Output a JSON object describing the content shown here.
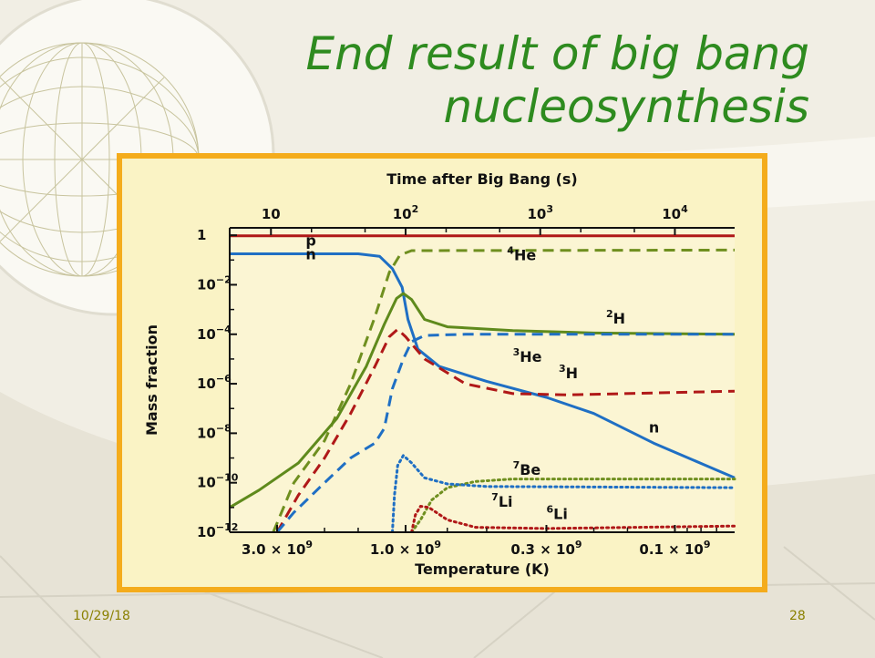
{
  "slide": {
    "title": "End result of big bang\nnucleosynthesis",
    "date": "10/29/18",
    "page_number": "28",
    "title_color": "#2e8b1f"
  },
  "chart_data": {
    "type": "line",
    "title": "",
    "top_axis": {
      "label": "Time after Big Bang (s)",
      "scale": "log",
      "ticks": [
        {
          "value": 10,
          "base": "10",
          "exp": ""
        },
        {
          "value": 100,
          "base": "10",
          "exp": "2"
        },
        {
          "value": 1000,
          "base": "10",
          "exp": "3"
        },
        {
          "value": 10000,
          "base": "10",
          "exp": "4"
        }
      ]
    },
    "x_axis": {
      "label": "Temperature (K)",
      "unit": "K",
      "scale": "log",
      "reversed": true,
      "range": [
        4500000000.0,
        60000000.0
      ],
      "ticks": [
        {
          "value": 3000000000.0,
          "text": "3.0 × 10",
          "exp": "9"
        },
        {
          "value": 1000000000.0,
          "text": "1.0 × 10",
          "exp": "9"
        },
        {
          "value": 300000000.0,
          "text": "0.3 × 10",
          "exp": "9"
        },
        {
          "value": 100000000.0,
          "text": "0.1 × 10",
          "exp": "9"
        }
      ]
    },
    "y_axis": {
      "label": "Mass fraction",
      "scale": "log",
      "range_log10": [
        -12,
        0.3
      ],
      "ticks": [
        {
          "log": 0,
          "base": "1",
          "exp": ""
        },
        {
          "log": -2,
          "base": "10",
          "exp": "−2"
        },
        {
          "log": -4,
          "base": "10",
          "exp": "−4"
        },
        {
          "log": -6,
          "base": "10",
          "exp": "−6"
        },
        {
          "log": -8,
          "base": "10",
          "exp": "−8"
        },
        {
          "log": -10,
          "base": "10",
          "exp": "−10"
        },
        {
          "log": -12,
          "base": "10",
          "exp": "−12"
        }
      ]
    },
    "series": [
      {
        "name": "p",
        "color": "#b01818",
        "style": "solid",
        "points": [
          [
            4500000000.0,
            -0.02
          ],
          [
            60000000.0,
            -0.02
          ]
        ]
      },
      {
        "name": "n",
        "color": "#1f6fc4",
        "style": "solid",
        "points": [
          [
            4500000000.0,
            -0.75
          ],
          [
            1500000000.0,
            -0.75
          ],
          [
            1250000000.0,
            -0.85
          ],
          [
            1120000000.0,
            -1.35
          ],
          [
            1030000000.0,
            -2.1
          ],
          [
            980000000.0,
            -3.4
          ],
          [
            900000000.0,
            -4.6
          ],
          [
            750000000.0,
            -5.3
          ],
          [
            500000000.0,
            -5.9
          ],
          [
            300000000.0,
            -6.55
          ],
          [
            200000000.0,
            -7.2
          ],
          [
            120000000.0,
            -8.4
          ],
          [
            60000000.0,
            -9.8
          ]
        ]
      },
      {
        "name": "4He",
        "color": "#6f8f1f",
        "style": "dashed",
        "points": [
          [
            3100000000.0,
            -12.0
          ],
          [
            2600000000.0,
            -10.0
          ],
          [
            2000000000.0,
            -8.3
          ],
          [
            1600000000.0,
            -6.0
          ],
          [
            1300000000.0,
            -3.3
          ],
          [
            1150000000.0,
            -1.5
          ],
          [
            1050000000.0,
            -0.8
          ],
          [
            950000000.0,
            -0.62
          ],
          [
            60000000.0,
            -0.6
          ]
        ]
      },
      {
        "name": "2H",
        "color": "#5f8a1c",
        "style": "solid",
        "points": [
          [
            4500000000.0,
            -11.0
          ],
          [
            3500000000.0,
            -10.3
          ],
          [
            2500000000.0,
            -9.2
          ],
          [
            1800000000.0,
            -7.4
          ],
          [
            1400000000.0,
            -5.3
          ],
          [
            1200000000.0,
            -3.6
          ],
          [
            1080000000.0,
            -2.55
          ],
          [
            1020000000.0,
            -2.35
          ],
          [
            950000000.0,
            -2.6
          ],
          [
            850000000.0,
            -3.4
          ],
          [
            700000000.0,
            -3.7
          ],
          [
            400000000.0,
            -3.85
          ],
          [
            200000000.0,
            -3.95
          ],
          [
            60000000.0,
            -4.0
          ]
        ]
      },
      {
        "name": "3H",
        "color": "#b01818",
        "style": "dashed",
        "points": [
          [
            3000000000.0,
            -12.0
          ],
          [
            2500000000.0,
            -10.5
          ],
          [
            2000000000.0,
            -9.0
          ],
          [
            1600000000.0,
            -7.2
          ],
          [
            1300000000.0,
            -5.3
          ],
          [
            1150000000.0,
            -4.1
          ],
          [
            1070000000.0,
            -3.8
          ],
          [
            1000000000.0,
            -4.1
          ],
          [
            850000000.0,
            -5.0
          ],
          [
            600000000.0,
            -6.0
          ],
          [
            400000000.0,
            -6.4
          ],
          [
            250000000.0,
            -6.45
          ],
          [
            60000000.0,
            -6.3
          ]
        ]
      },
      {
        "name": "3He",
        "color": "#1f6fc4",
        "style": "dashed",
        "points": [
          [
            3000000000.0,
            -12.0
          ],
          [
            2600000000.0,
            -11.2
          ],
          [
            2000000000.0,
            -10.0
          ],
          [
            1600000000.0,
            -9.0
          ],
          [
            1300000000.0,
            -8.4
          ],
          [
            1200000000.0,
            -7.8
          ],
          [
            1120000000.0,
            -6.2
          ],
          [
            1020000000.0,
            -5.0
          ],
          [
            950000000.0,
            -4.3
          ],
          [
            850000000.0,
            -4.05
          ],
          [
            600000000.0,
            -4.0
          ],
          [
            60000000.0,
            -4.0
          ]
        ]
      },
      {
        "name": "7Be",
        "color": "#6f8f1f",
        "style": "dotted",
        "points": [
          [
            950000000.0,
            -12.0
          ],
          [
            880000000.0,
            -11.5
          ],
          [
            800000000.0,
            -10.7
          ],
          [
            700000000.0,
            -10.2
          ],
          [
            550000000.0,
            -9.95
          ],
          [
            400000000.0,
            -9.85
          ],
          [
            60000000.0,
            -9.85
          ]
        ]
      },
      {
        "name": "7Li",
        "color": "#1f6fc4",
        "style": "dotted",
        "points": [
          [
            1120000000.0,
            -12.0
          ],
          [
            1100000000.0,
            -10.5
          ],
          [
            1070000000.0,
            -9.3
          ],
          [
            1020000000.0,
            -8.9
          ],
          [
            950000000.0,
            -9.2
          ],
          [
            850000000.0,
            -9.8
          ],
          [
            700000000.0,
            -10.05
          ],
          [
            500000000.0,
            -10.15
          ],
          [
            60000000.0,
            -10.2
          ]
        ]
      },
      {
        "name": "6Li",
        "color": "#b01818",
        "style": "dotted",
        "points": [
          [
            950000000.0,
            -12.0
          ],
          [
            920000000.0,
            -11.3
          ],
          [
            880000000.0,
            -10.95
          ],
          [
            820000000.0,
            -11.0
          ],
          [
            700000000.0,
            -11.5
          ],
          [
            550000000.0,
            -11.8
          ],
          [
            300000000.0,
            -11.85
          ],
          [
            60000000.0,
            -11.75
          ]
        ]
      }
    ],
    "labels": [
      {
        "base": "p",
        "sup": "",
        "x": 2350000000.0,
        "y": -0.2
      },
      {
        "base": "n",
        "sup": "",
        "x": 2350000000.0,
        "y": -0.75
      },
      {
        "base": "He",
        "sup": "4",
        "x": 420000000.0,
        "y": -0.78
      },
      {
        "base": "H",
        "sup": "2",
        "x": 180000000.0,
        "y": -3.35
      },
      {
        "base": "He",
        "sup": "3",
        "x": 400000000.0,
        "y": -4.9
      },
      {
        "base": "H",
        "sup": "3",
        "x": 270000000.0,
        "y": -5.55
      },
      {
        "base": "n",
        "sup": "",
        "x": 125000000.0,
        "y": -7.75
      },
      {
        "base": "Be",
        "sup": "7",
        "x": 400000000.0,
        "y": -9.45
      },
      {
        "base": "Li",
        "sup": "7",
        "x": 480000000.0,
        "y": -10.75
      },
      {
        "base": "Li",
        "sup": "6",
        "x": 300000000.0,
        "y": -11.25
      }
    ],
    "grid": false,
    "legend": "none (curves labeled directly)"
  }
}
